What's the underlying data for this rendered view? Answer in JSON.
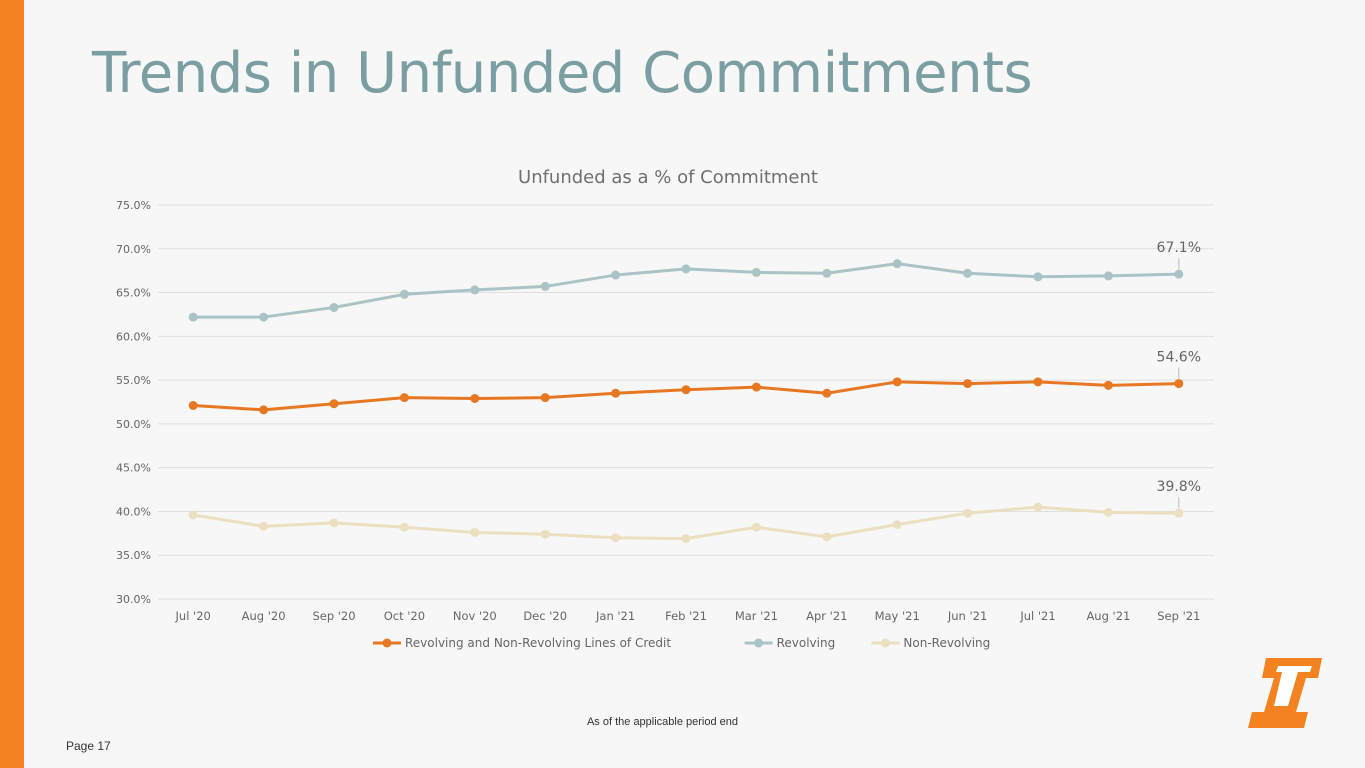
{
  "slide": {
    "title": "Trends in Unfunded Commitments",
    "footnote": "As of the applicable period end",
    "page_label": "Page 17"
  },
  "colors": {
    "accent_bar": "#f58220",
    "title": "#7b9ea2",
    "series_revolving_nonrevolving": "#e87722",
    "series_revolving": "#a9c3c7",
    "series_nonrevolving": "#ebdfc0"
  },
  "chart_data": {
    "type": "line",
    "title": "Unfunded as a % of Commitment",
    "xlabel": "",
    "ylabel": "",
    "categories": [
      "Jul '20",
      "Aug '20",
      "Sep '20",
      "Oct '20",
      "Nov '20",
      "Dec '20",
      "Jan '21",
      "Feb '21",
      "Mar '21",
      "Apr '21",
      "May '21",
      "Jun '21",
      "Jul '21",
      "Aug '21",
      "Sep '21"
    ],
    "ylim": [
      30,
      75
    ],
    "yticks": [
      "30.0%",
      "35.0%",
      "40.0%",
      "45.0%",
      "50.0%",
      "55.0%",
      "60.0%",
      "65.0%",
      "70.0%",
      "75.0%"
    ],
    "grid": true,
    "legend_position": "bottom",
    "series": [
      {
        "name": "Revolving and Non-Revolving Lines of Credit",
        "color": "#e87722",
        "values": [
          52.1,
          51.6,
          52.3,
          53.0,
          52.9,
          53.0,
          53.5,
          53.9,
          54.2,
          53.5,
          54.8,
          54.6,
          54.8,
          54.4,
          54.6
        ],
        "end_label": "54.6%"
      },
      {
        "name": "Revolving",
        "color": "#a9c3c7",
        "values": [
          62.2,
          62.2,
          63.3,
          64.8,
          65.3,
          65.7,
          67.0,
          67.7,
          67.3,
          67.2,
          68.3,
          67.2,
          66.8,
          66.9,
          67.1
        ],
        "end_label": "67.1%"
      },
      {
        "name": "Non-Revolving",
        "color": "#ebdfc0",
        "values": [
          39.6,
          38.3,
          38.7,
          38.2,
          37.6,
          37.4,
          37.0,
          36.9,
          38.2,
          37.1,
          38.5,
          39.8,
          40.5,
          39.9,
          39.8
        ],
        "end_label": "39.8%"
      }
    ]
  }
}
